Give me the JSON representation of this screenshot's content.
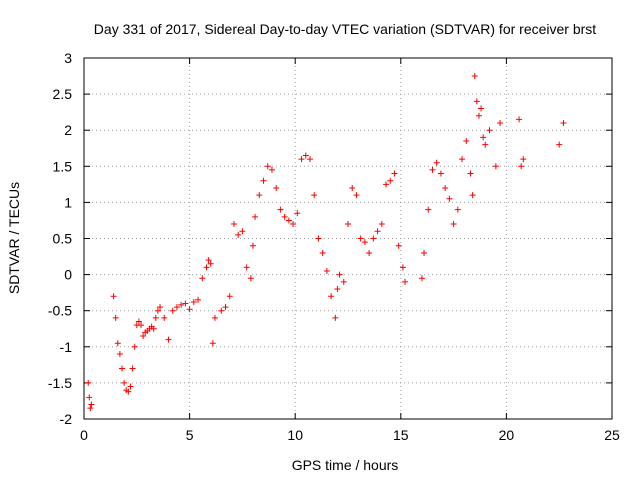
{
  "chart_data": {
    "type": "scatter",
    "title": "Day 331 of 2017, Sidereal Day-to-day VTEC variation (SDTVAR) for receiver brst",
    "xlabel": "GPS time / hours",
    "ylabel": "SDTVAR / TECUs",
    "xlim": [
      0,
      25
    ],
    "ylim": [
      -2,
      3
    ],
    "xticks": [
      0,
      5,
      10,
      15,
      20,
      25
    ],
    "yticks": [
      -2,
      -1.5,
      -1,
      -0.5,
      0,
      0.5,
      1,
      1.5,
      2,
      2.5,
      3
    ],
    "grid": true,
    "marker": "+",
    "color": "#ff0000",
    "series": [
      {
        "name": "SDTVAR",
        "x": [
          0.2,
          0.25,
          0.3,
          0.35,
          1.4,
          1.5,
          1.6,
          1.7,
          1.8,
          1.9,
          2.0,
          2.1,
          2.2,
          2.3,
          2.4,
          2.5,
          2.6,
          2.7,
          2.8,
          2.9,
          3.0,
          3.1,
          3.2,
          3.3,
          3.4,
          3.5,
          3.6,
          3.8,
          4.0,
          4.2,
          4.4,
          4.6,
          4.8,
          5.0,
          5.2,
          5.4,
          5.6,
          5.8,
          5.9,
          6.0,
          6.1,
          6.2,
          6.5,
          6.7,
          6.9,
          7.1,
          7.3,
          7.5,
          7.7,
          7.9,
          8.0,
          8.1,
          8.3,
          8.5,
          8.7,
          8.9,
          9.1,
          9.3,
          9.5,
          9.7,
          9.9,
          10.1,
          10.3,
          10.5,
          10.7,
          10.9,
          11.1,
          11.3,
          11.5,
          11.7,
          11.9,
          12.0,
          12.1,
          12.3,
          12.5,
          12.7,
          12.9,
          13.1,
          13.3,
          13.5,
          13.7,
          13.9,
          14.1,
          14.3,
          14.5,
          14.7,
          14.9,
          15.1,
          15.2,
          16.0,
          16.1,
          16.3,
          16.5,
          16.7,
          16.9,
          17.1,
          17.3,
          17.5,
          17.7,
          17.9,
          18.1,
          18.3,
          18.4,
          18.5,
          18.6,
          18.7,
          18.8,
          18.9,
          19.0,
          19.2,
          19.5,
          19.7,
          20.6,
          20.7,
          20.8,
          22.5,
          22.7
        ],
        "y": [
          -1.5,
          -1.7,
          -1.85,
          -1.8,
          -0.3,
          -0.6,
          -0.95,
          -1.1,
          -1.3,
          -1.5,
          -1.6,
          -1.62,
          -1.55,
          -1.3,
          -1.0,
          -0.7,
          -0.65,
          -0.7,
          -0.85,
          -0.8,
          -0.78,
          -0.75,
          -0.72,
          -0.75,
          -0.6,
          -0.5,
          -0.45,
          -0.6,
          -0.9,
          -0.5,
          -0.45,
          -0.42,
          -0.4,
          -0.48,
          -0.38,
          -0.35,
          -0.05,
          0.1,
          0.2,
          0.15,
          -0.95,
          -0.6,
          -0.5,
          -0.45,
          -0.3,
          0.7,
          0.55,
          0.6,
          0.1,
          -0.05,
          0.4,
          0.8,
          1.1,
          1.3,
          1.5,
          1.45,
          1.2,
          0.9,
          0.8,
          0.75,
          0.7,
          0.85,
          1.6,
          1.65,
          1.6,
          1.1,
          0.5,
          0.3,
          0.05,
          -0.3,
          -0.6,
          -0.2,
          0.0,
          -0.1,
          0.7,
          1.2,
          1.1,
          0.5,
          0.45,
          0.3,
          0.5,
          0.6,
          0.7,
          1.25,
          1.3,
          1.4,
          0.4,
          0.1,
          -0.1,
          -0.05,
          0.3,
          0.9,
          1.45,
          1.55,
          1.4,
          1.2,
          1.05,
          0.7,
          0.9,
          1.6,
          1.85,
          1.4,
          1.1,
          2.75,
          2.4,
          2.2,
          2.3,
          1.9,
          1.8,
          2.0,
          1.5,
          2.1,
          2.15,
          1.5,
          1.6,
          1.8,
          2.1
        ]
      }
    ]
  }
}
